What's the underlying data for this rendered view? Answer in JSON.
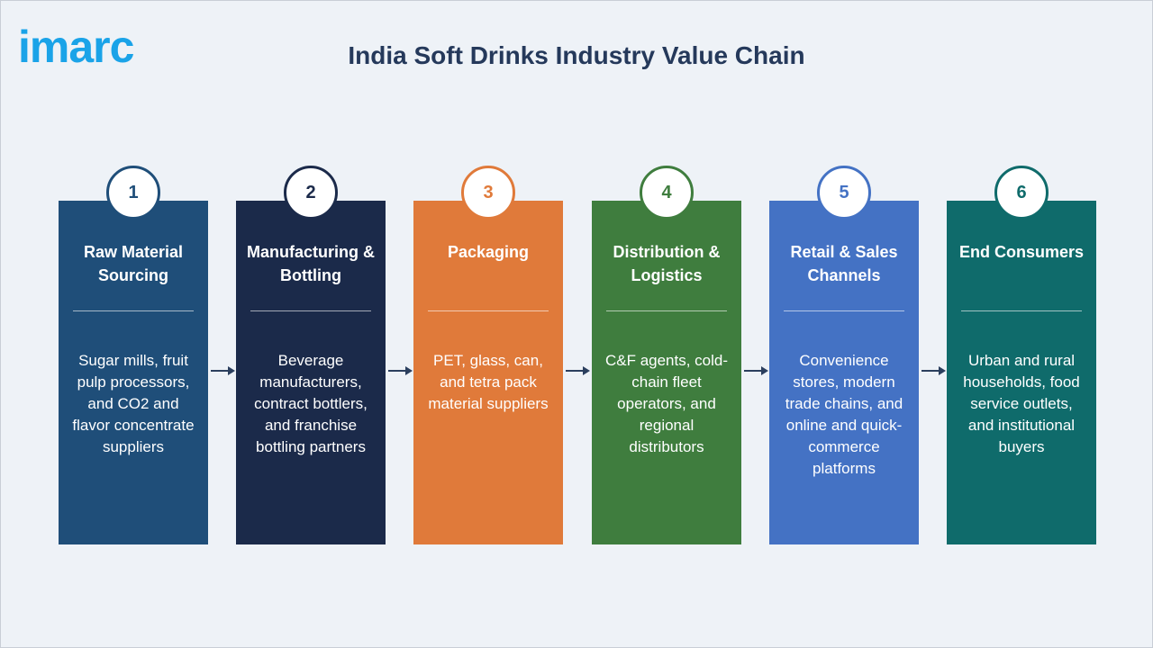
{
  "logo": {
    "text": "imarc"
  },
  "title": "India Soft Drinks Industry Value Chain",
  "steps": [
    {
      "number": "1",
      "title": "Raw Material Sourcing",
      "description": "Sugar mills, fruit pulp processors, and CO2 and flavor concentrate suppliers",
      "color": "#1f4e79"
    },
    {
      "number": "2",
      "title": "Manufacturing & Bottling",
      "description": "Beverage manufacturers, contract bottlers, and franchise bottling partners",
      "color": "#1b2a4a"
    },
    {
      "number": "3",
      "title": "Packaging",
      "description": "PET, glass, can, and tetra pack material suppliers",
      "color": "#e07a3a"
    },
    {
      "number": "4",
      "title": "Distribution & Logistics",
      "description": "C&F agents, cold-chain fleet operators, and regional distributors",
      "color": "#3f7d3e"
    },
    {
      "number": "5",
      "title": "Retail & Sales Channels",
      "description": "Convenience stores, modern trade chains, and online and quick-commerce platforms",
      "color": "#4472c4"
    },
    {
      "number": "6",
      "title": "End Consumers",
      "description": "Urban and rural households, food service outlets, and institutional buyers",
      "color": "#0f6b6b"
    }
  ]
}
